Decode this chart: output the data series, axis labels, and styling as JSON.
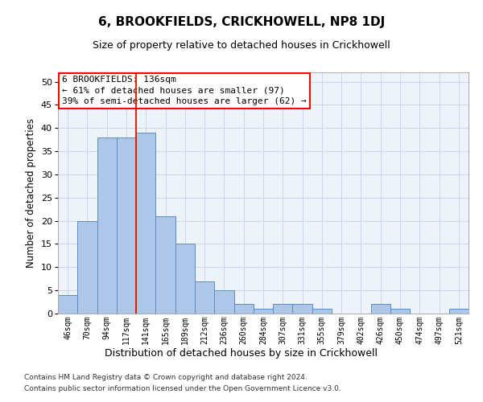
{
  "title": "6, BROOKFIELDS, CRICKHOWELL, NP8 1DJ",
  "subtitle": "Size of property relative to detached houses in Crickhowell",
  "xlabel": "Distribution of detached houses by size in Crickhowell",
  "ylabel": "Number of detached properties",
  "categories": [
    "46sqm",
    "70sqm",
    "94sqm",
    "117sqm",
    "141sqm",
    "165sqm",
    "189sqm",
    "212sqm",
    "236sqm",
    "260sqm",
    "284sqm",
    "307sqm",
    "331sqm",
    "355sqm",
    "379sqm",
    "402sqm",
    "426sqm",
    "450sqm",
    "474sqm",
    "497sqm",
    "521sqm"
  ],
  "values": [
    4,
    20,
    38,
    38,
    39,
    21,
    15,
    7,
    5,
    2,
    1,
    2,
    2,
    1,
    0,
    0,
    2,
    1,
    0,
    0,
    1
  ],
  "bar_color": "#aec6e8",
  "bar_edge_color": "#5a8fc2",
  "bar_width": 1.0,
  "red_line_x": 3.5,
  "red_line_label": "6 BROOKFIELDS: 136sqm",
  "annotation_line2": "← 61% of detached houses are smaller (97)",
  "annotation_line3": "39% of semi-detached houses are larger (62) →",
  "ylim": [
    0,
    52
  ],
  "yticks": [
    0,
    5,
    10,
    15,
    20,
    25,
    30,
    35,
    40,
    45,
    50
  ],
  "grid_color": "#c8d8ec",
  "background_color": "#eef3f9",
  "footnote1": "Contains HM Land Registry data © Crown copyright and database right 2024.",
  "footnote2": "Contains public sector information licensed under the Open Government Licence v3.0."
}
